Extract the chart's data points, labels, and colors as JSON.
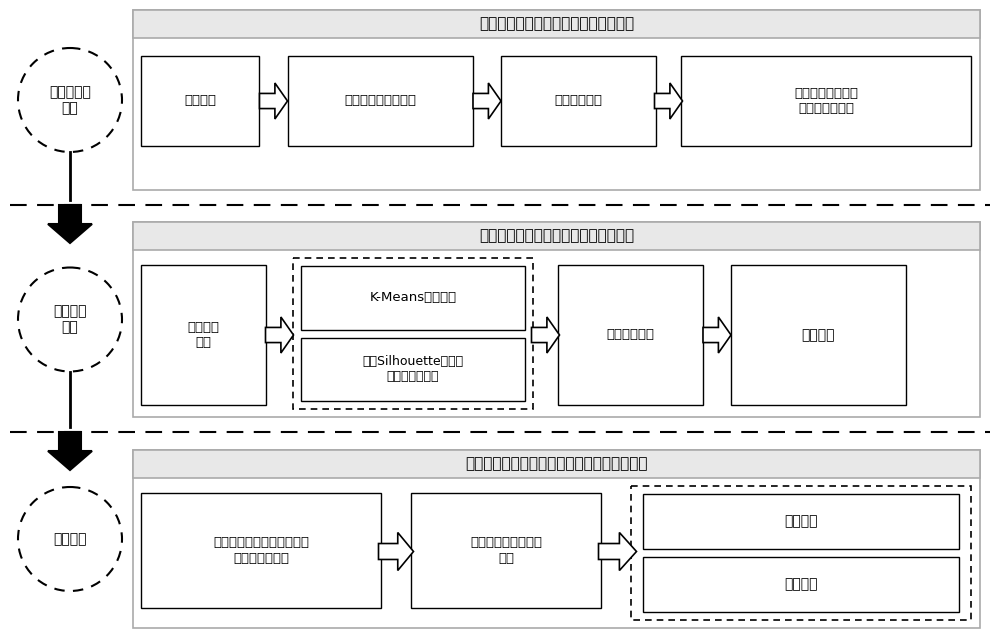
{
  "bg_color": "#ffffff",
  "section1_title": "城市交通运行指数的速度分布特征分析",
  "section2_title": "城市交通运行指数的速度分布聚类分析",
  "section3_title": "基于城市交通运行指数的排放测算及不确定性",
  "circle1_text": "数据采集及\n处理",
  "circle2_text": "数据聚类\n分析",
  "circle3_text": "模型建立",
  "row1_boxes": [
    "数据采集",
    "数据质量控制及处理",
    "数据初步分析",
    "交通指数的速度分\n布不确定性分析"
  ],
  "row2_box1": "影响因素\n分析",
  "row2_dotted_box1": "K-Means聚类方法",
  "row2_dotted_box2": "基于Silhouette测度的\n最佳聚类数函数",
  "row2_box3": "聚类评价指标",
  "row2_box4": "聚类方案",
  "row3_box1": "机动车油耗排放强度与交通\n指数的关系模型",
  "row3_box2": "排放测算及不确定性\n分析",
  "row3_dotted_box1": "关系曲线",
  "row3_dotted_box2": "拟合函数",
  "gray_border": "#888888",
  "title_bg": "#e8e8e8",
  "section_border": "#aaaaaa"
}
